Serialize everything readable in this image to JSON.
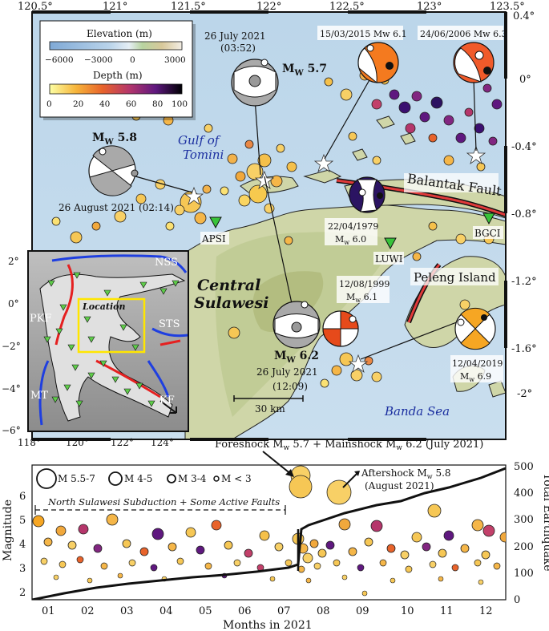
{
  "map": {
    "lon_ticks": [
      "120.5°",
      "121°",
      "121.5°",
      "122°",
      "122.5°",
      "123°",
      "123.5°"
    ],
    "lat_ticks": [
      "0.4°",
      "0°",
      "-0.4°",
      "-0.8°",
      "-1.2°",
      "-1.6°",
      "-2°"
    ],
    "scale_label": "30 km",
    "places": {
      "gulf": "Gulf of",
      "tomini": "Tomini",
      "central": "Central",
      "sulawesi": "Sulawesi",
      "banda": "Banda Sea",
      "peleng": "Peleng Island",
      "balantak": "Balantak Fault"
    },
    "stations": [
      "APSI",
      "LUWI",
      "BGCI"
    ]
  },
  "legend": {
    "elevation_title": "Elevation (m)",
    "elevation_ticks": [
      "−6000",
      "−3000",
      "0",
      "3000"
    ],
    "depth_title": "Depth (m)",
    "depth_ticks": [
      "0",
      "20",
      "40",
      "60",
      "80",
      "100"
    ]
  },
  "events": {
    "e1": {
      "date": "26 July 2021",
      "time": "(03:52)",
      "mag": "5.7"
    },
    "e2": {
      "mag": "5.8",
      "datetime": "26 August 2021 (02:14)"
    },
    "e3": {
      "mag": "6.2",
      "date": "26 July 2021",
      "time": "(12:09)"
    },
    "e4": {
      "label": "15/03/2015 Mw 6.1"
    },
    "e5": {
      "label": "24/06/2006 Mw 6.3"
    },
    "e6": {
      "date": "22/04/1979",
      "mag": "6.0"
    },
    "e7": {
      "date": "12/08/1999",
      "mag": "6.1"
    },
    "e8": {
      "date": "12/04/2019",
      "mag": "6.9"
    }
  },
  "inset": {
    "lon_ticks": [
      "118°",
      "120°",
      "122°",
      "124°"
    ],
    "lat_ticks": [
      "2°",
      "0°",
      "−2°",
      "−4°",
      "−6°"
    ],
    "labels": {
      "nss": "NSS",
      "pkf": "PKF",
      "sts": "STS",
      "mt": "MT",
      "kf": "KF",
      "location": "Location"
    }
  },
  "timeseries": {
    "title": "Foreshock Mw 5.7 + Mainshock Mw 6.2 (July 2021)",
    "aftershock": "Aftershock Mw 5.8",
    "aftershock_date": "(August 2021)",
    "region": "North Sulawesi Subduction + Some Active Faults",
    "ylabel": "Magnitude",
    "y2label": "Total Earthquake",
    "xlabel": "Months in 2021",
    "months": [
      "01",
      "02",
      "03",
      "04",
      "05",
      "06",
      "07",
      "08",
      "09",
      "10",
      "11",
      "12"
    ],
    "mag_ticks": [
      "2",
      "3",
      "4",
      "5",
      "6"
    ],
    "count_ticks": [
      "0",
      "100",
      "200",
      "300",
      "400",
      "500"
    ],
    "size_legend": [
      "M 5.5-7",
      "M 4-5",
      "M 3-4",
      "M < 3"
    ]
  }
}
